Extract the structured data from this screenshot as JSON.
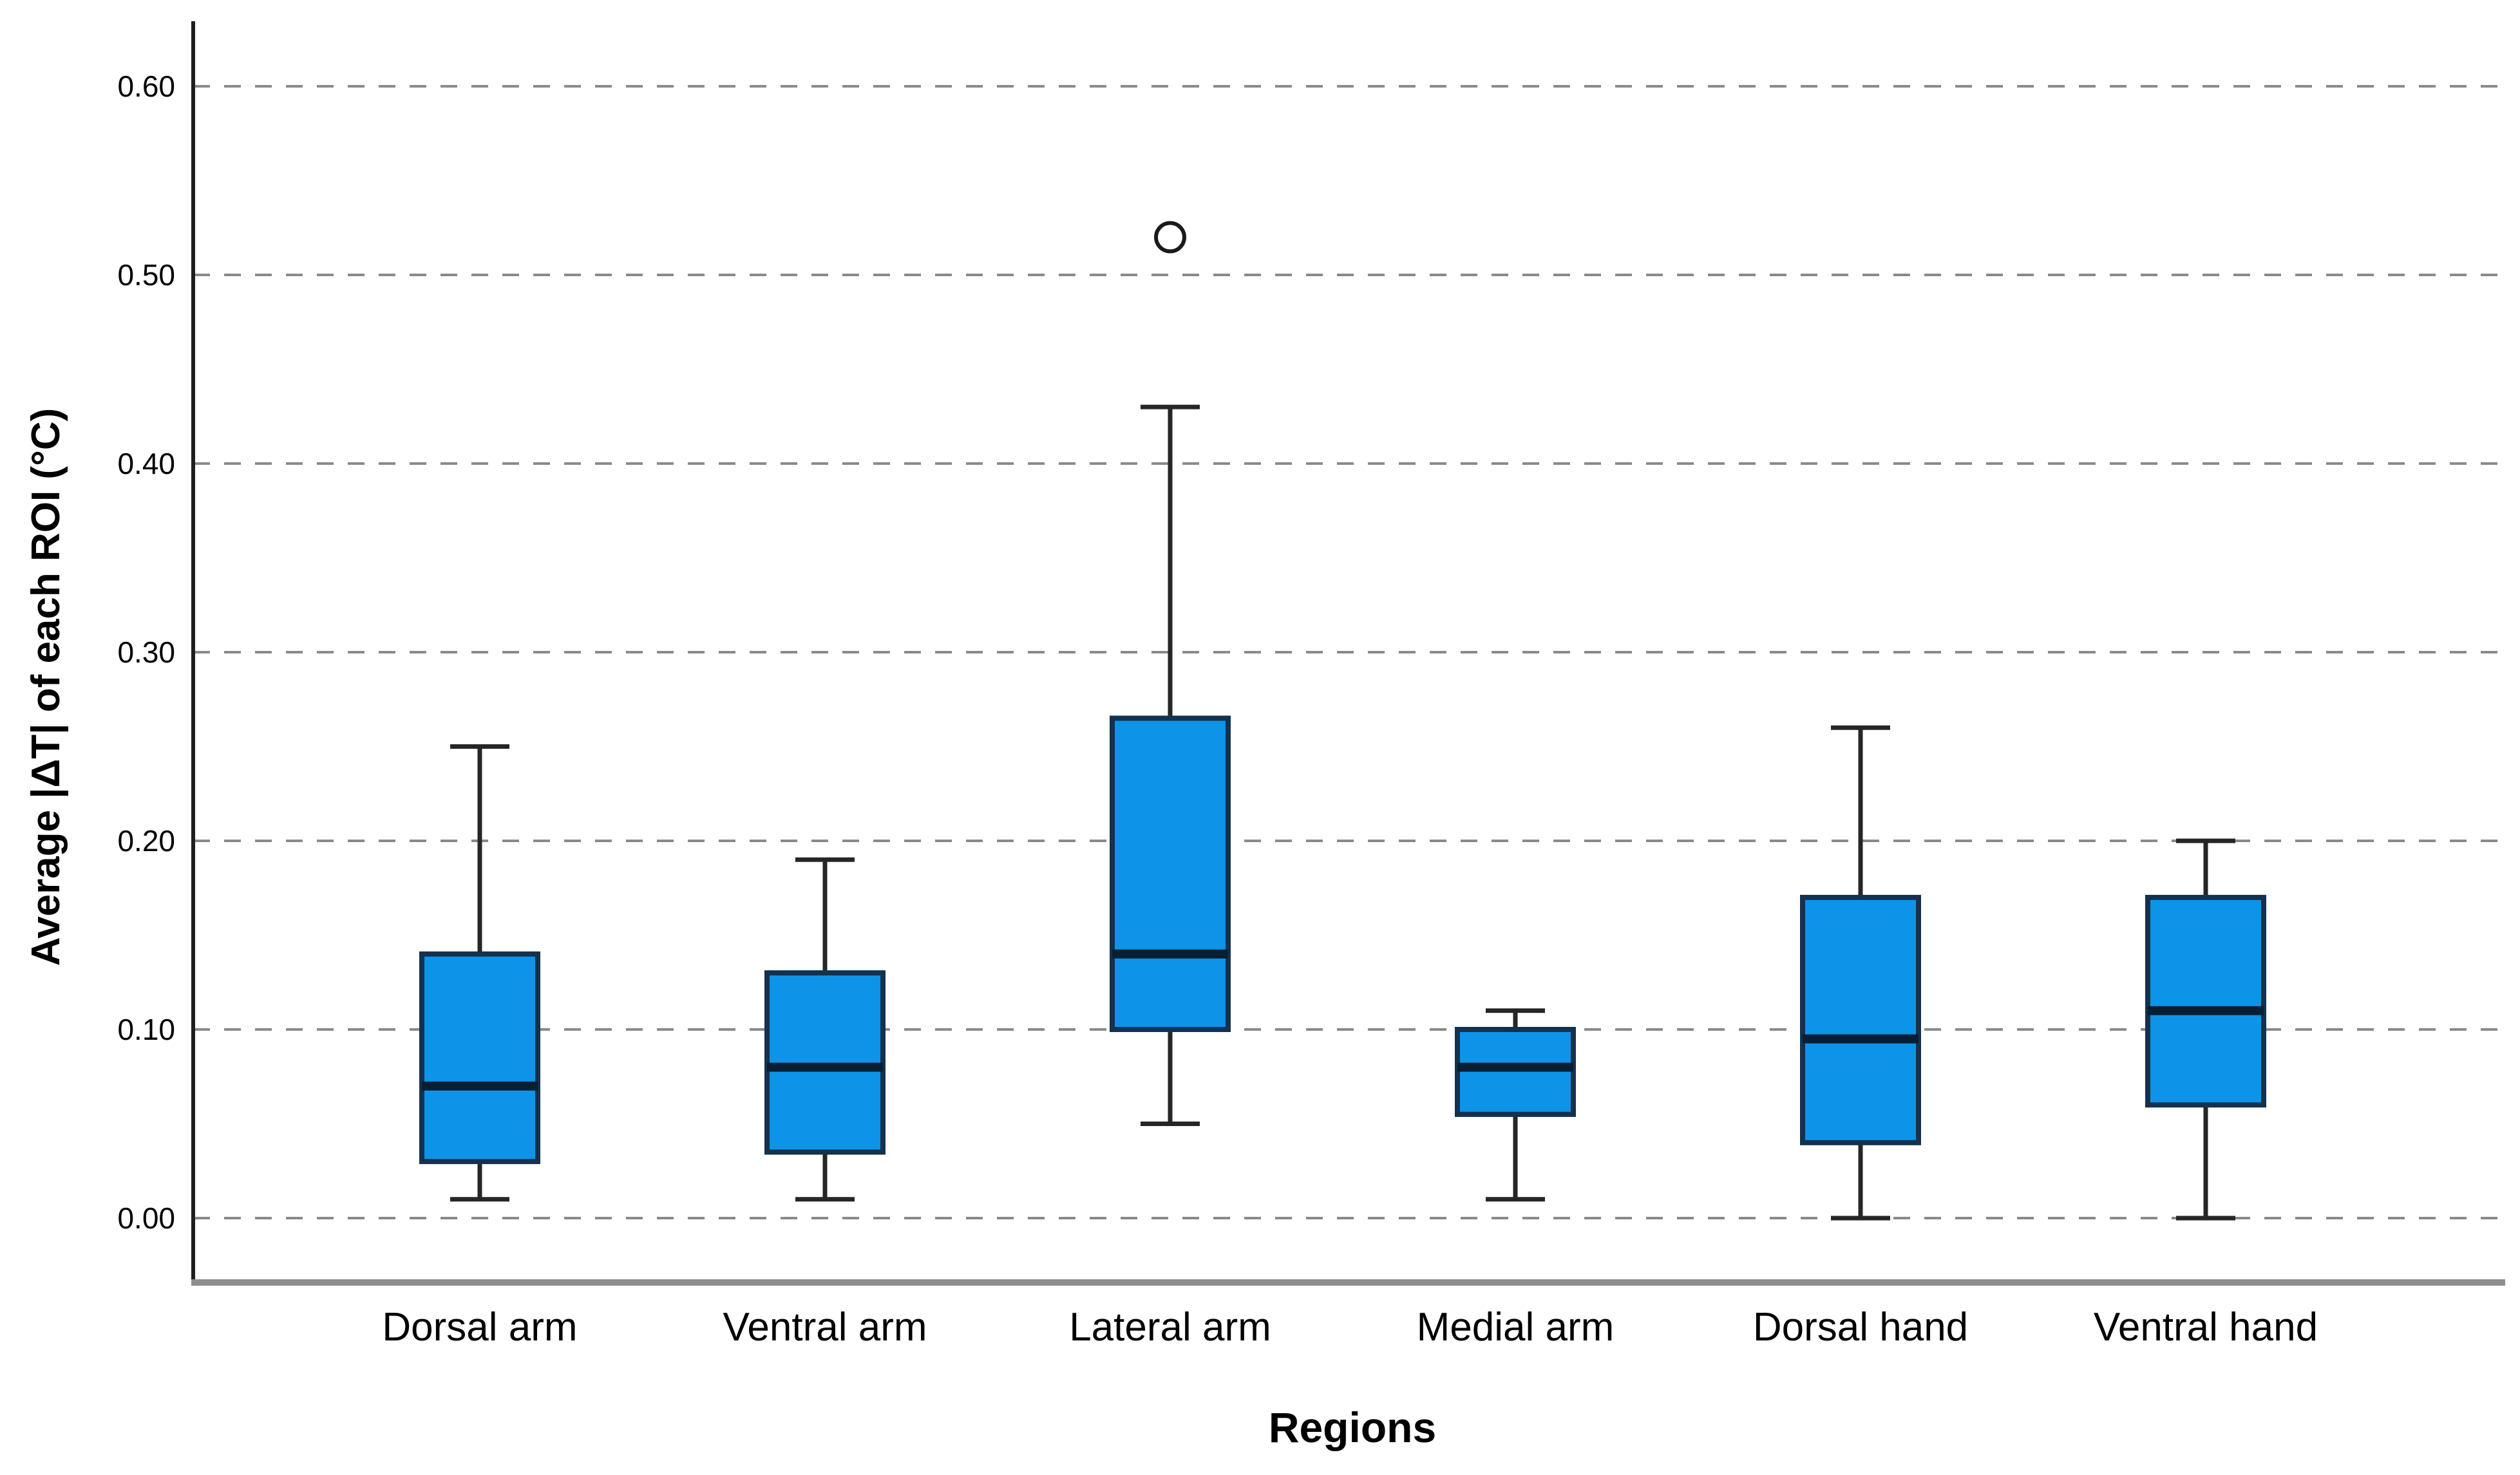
{
  "chart_data": {
    "type": "box",
    "xlabel": "Regions",
    "ylabel": "Average |ΔT| of each ROI (°C)",
    "y_ticks": [
      "0.60",
      "0.50",
      "0.40",
      "0.30",
      "0.20",
      "0.10",
      "0.00"
    ],
    "ylim": [
      -0.03,
      0.63
    ],
    "grid": "horizontal-dashed",
    "legend": "none",
    "categories": [
      "Dorsal arm",
      "Ventral arm",
      "Lateral arm",
      "Medial arm",
      "Dorsal hand",
      "Ventral hand"
    ],
    "series": [
      {
        "name": "Dorsal arm",
        "whisker_low": 0.01,
        "q1": 0.03,
        "median": 0.07,
        "q3": 0.14,
        "whisker_high": 0.25,
        "outliers": []
      },
      {
        "name": "Ventral arm",
        "whisker_low": 0.01,
        "q1": 0.035,
        "median": 0.08,
        "q3": 0.13,
        "whisker_high": 0.19,
        "outliers": []
      },
      {
        "name": "Lateral arm",
        "whisker_low": 0.05,
        "q1": 0.1,
        "median": 0.14,
        "q3": 0.265,
        "whisker_high": 0.43,
        "outliers": [
          0.52
        ]
      },
      {
        "name": "Medial arm",
        "whisker_low": 0.01,
        "q1": 0.055,
        "median": 0.08,
        "q3": 0.1,
        "whisker_high": 0.11,
        "outliers": []
      },
      {
        "name": "Dorsal hand",
        "whisker_low": 0.0,
        "q1": 0.04,
        "median": 0.095,
        "q3": 0.17,
        "whisker_high": 0.26,
        "outliers": []
      },
      {
        "name": "Ventral hand",
        "whisker_low": 0.0,
        "q1": 0.06,
        "median": 0.11,
        "q3": 0.17,
        "whisker_high": 0.2,
        "outliers": []
      }
    ],
    "colors": {
      "box_fill": "#0d94e8",
      "box_border": "#14314d",
      "median": "#081f33",
      "whisker": "#262626",
      "outlier_stroke": "#1a1a1a",
      "outlier_fill": "#ffffff",
      "gridline": "#8a8a8a",
      "y_axis": "#1f1f1f",
      "x_axis": "#8f8f8f",
      "background": "#ffffff"
    }
  }
}
